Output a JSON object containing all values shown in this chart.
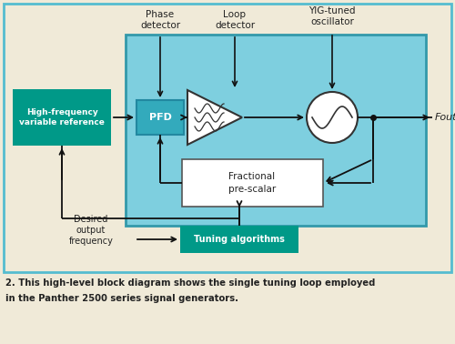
{
  "bg_color": "#f0ead8",
  "outer_border_color": "#55bcd0",
  "main_loop_bg": "#7ecfdf",
  "main_loop_border": "#3399aa",
  "green_box_color": "#009988",
  "green_box_text": "#ffffff",
  "pfd_box_color": "#33aabc",
  "pfd_box_border": "#2288a0",
  "fractional_box_color": "#ffffff",
  "fractional_box_border": "#555555",
  "caption_color": "#222222",
  "arrow_color": "#111111",
  "title_line1": "2. This high-level block diagram shows the single tuning loop employed",
  "title_line2": "in the Panther 2500 series signal generators.",
  "label_phase_detector": "Phase\ndetector",
  "label_loop_detector": "Loop\ndetector",
  "label_yig": "YIG-tuned\noscillator",
  "label_fout": "Fout",
  "label_high_freq": "High-frequency\nvariable reference",
  "label_pfd": "PFD",
  "label_fractional": "Fractional\npre-scalar",
  "label_tuning": "Tuning algorithms",
  "label_desired": "Desired\noutput\nfrequency"
}
